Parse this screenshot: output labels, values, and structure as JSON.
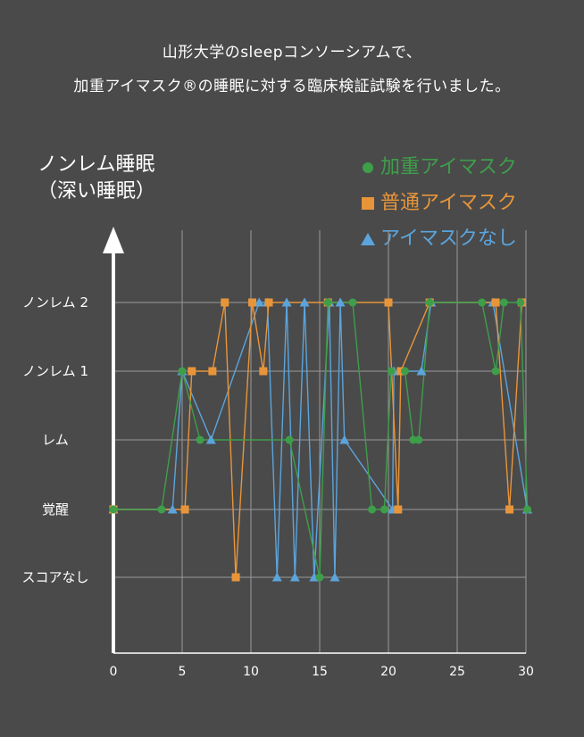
{
  "header": {
    "line1": "山形大学のsleepコンソーシアムで、",
    "line2": "加重アイマスク®の睡眠に対する臨床検証試験を行いました。"
  },
  "chart_data": {
    "type": "line",
    "ylabel": "ノンレム睡眠\n（深い睡眠）",
    "y_categories": [
      "スコアなし",
      "覚醒",
      "レム",
      "ノンレム 1",
      "ノンレム 2"
    ],
    "x_ticks": [
      0,
      5,
      10,
      15,
      20,
      25,
      30
    ],
    "xlim": [
      0,
      30
    ],
    "grid": true,
    "legend_position": "top-right",
    "series": [
      {
        "name": "加重アイマスク",
        "color": "#3e9e4a",
        "marker": "circle",
        "points": [
          [
            0,
            1
          ],
          [
            3.5,
            1
          ],
          [
            5,
            3
          ],
          [
            6.3,
            2
          ],
          [
            12.8,
            2
          ],
          [
            15,
            0
          ],
          [
            15.6,
            4
          ],
          [
            17.4,
            4
          ],
          [
            18.8,
            1
          ],
          [
            19.7,
            1
          ],
          [
            20.2,
            3
          ],
          [
            21.2,
            3
          ],
          [
            21.8,
            2
          ],
          [
            22.2,
            2
          ],
          [
            23,
            4
          ],
          [
            26.8,
            4
          ],
          [
            27.8,
            3
          ],
          [
            28.4,
            4
          ],
          [
            29.6,
            4
          ],
          [
            30.1,
            1
          ]
        ]
      },
      {
        "name": "普通アイマスク",
        "color": "#e8953a",
        "marker": "square",
        "points": [
          [
            0,
            1
          ],
          [
            5.2,
            1
          ],
          [
            5.7,
            3
          ],
          [
            7.2,
            3
          ],
          [
            8.1,
            4
          ],
          [
            8.9,
            0
          ],
          [
            10.1,
            4
          ],
          [
            10.9,
            3
          ],
          [
            11.3,
            4
          ],
          [
            15.6,
            4
          ],
          [
            20,
            4
          ],
          [
            20.7,
            1
          ],
          [
            20.9,
            3
          ],
          [
            23,
            4
          ],
          [
            27.8,
            4
          ],
          [
            28.8,
            1
          ],
          [
            29.7,
            4
          ]
        ]
      },
      {
        "name": "アイマスクなし",
        "color": "#5ba4dc",
        "marker": "triangle",
        "points": [
          [
            0,
            1
          ],
          [
            4.3,
            1
          ],
          [
            5,
            3
          ],
          [
            7.1,
            2
          ],
          [
            10.6,
            4
          ],
          [
            11.2,
            4
          ],
          [
            11.9,
            0
          ],
          [
            12.6,
            4
          ],
          [
            13.2,
            0
          ],
          [
            13.9,
            4
          ],
          [
            14.6,
            0
          ],
          [
            15.7,
            4
          ],
          [
            16.1,
            0
          ],
          [
            16.5,
            4
          ],
          [
            16.8,
            2
          ],
          [
            20.3,
            1
          ],
          [
            20.4,
            3
          ],
          [
            22.4,
            3
          ],
          [
            23.1,
            4
          ],
          [
            27.6,
            4
          ],
          [
            30.1,
            1
          ]
        ]
      }
    ]
  }
}
